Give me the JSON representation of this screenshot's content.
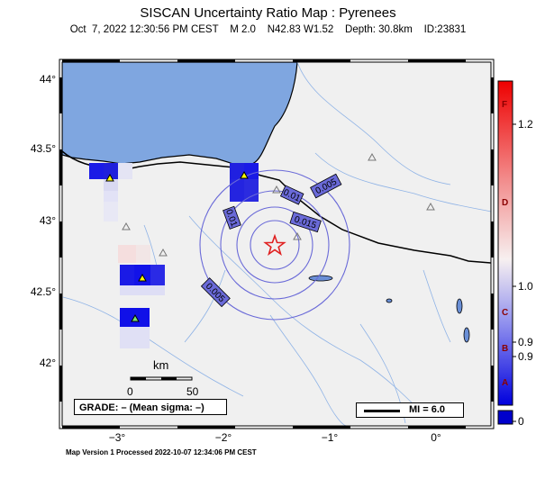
{
  "header": {
    "title": "SISCAN Uncertainty Ratio Map : Pyrenees",
    "subtitle": "Oct  7, 2022 12:30:56 PM CEST    M 2.0    N42.83 W1.52    Depth: 30.8km    ID:23831"
  },
  "axes": {
    "y_ticks": [
      "44°",
      "43.5°",
      "43°",
      "42.5°",
      "42°"
    ],
    "x_ticks": [
      "−3°",
      "−2°",
      "−1°",
      "0°"
    ]
  },
  "contours": [
    "0.005",
    "0.01",
    "0.015",
    "0.01",
    "0.005"
  ],
  "scale_bar": {
    "unit": "km",
    "min": "0",
    "max": "50"
  },
  "grade": "GRADE: – (Mean sigma: –)",
  "legend": {
    "mi": "MI = 6.0"
  },
  "colorbar": {
    "ticks": [
      "1.2",
      "1.0",
      "0.9",
      "0.9",
      "0"
    ],
    "letters": [
      "F",
      "D",
      "C",
      "B",
      "A"
    ]
  },
  "footer": "Map Version 1 Processed 2022-10-07 12:34:06 PM CEST",
  "colors": {
    "sea": "#7fa6e0",
    "land": "#f0f0f0",
    "station": "#ffff00",
    "epicenter": "#e02020",
    "contour": "#6a6ad8"
  }
}
